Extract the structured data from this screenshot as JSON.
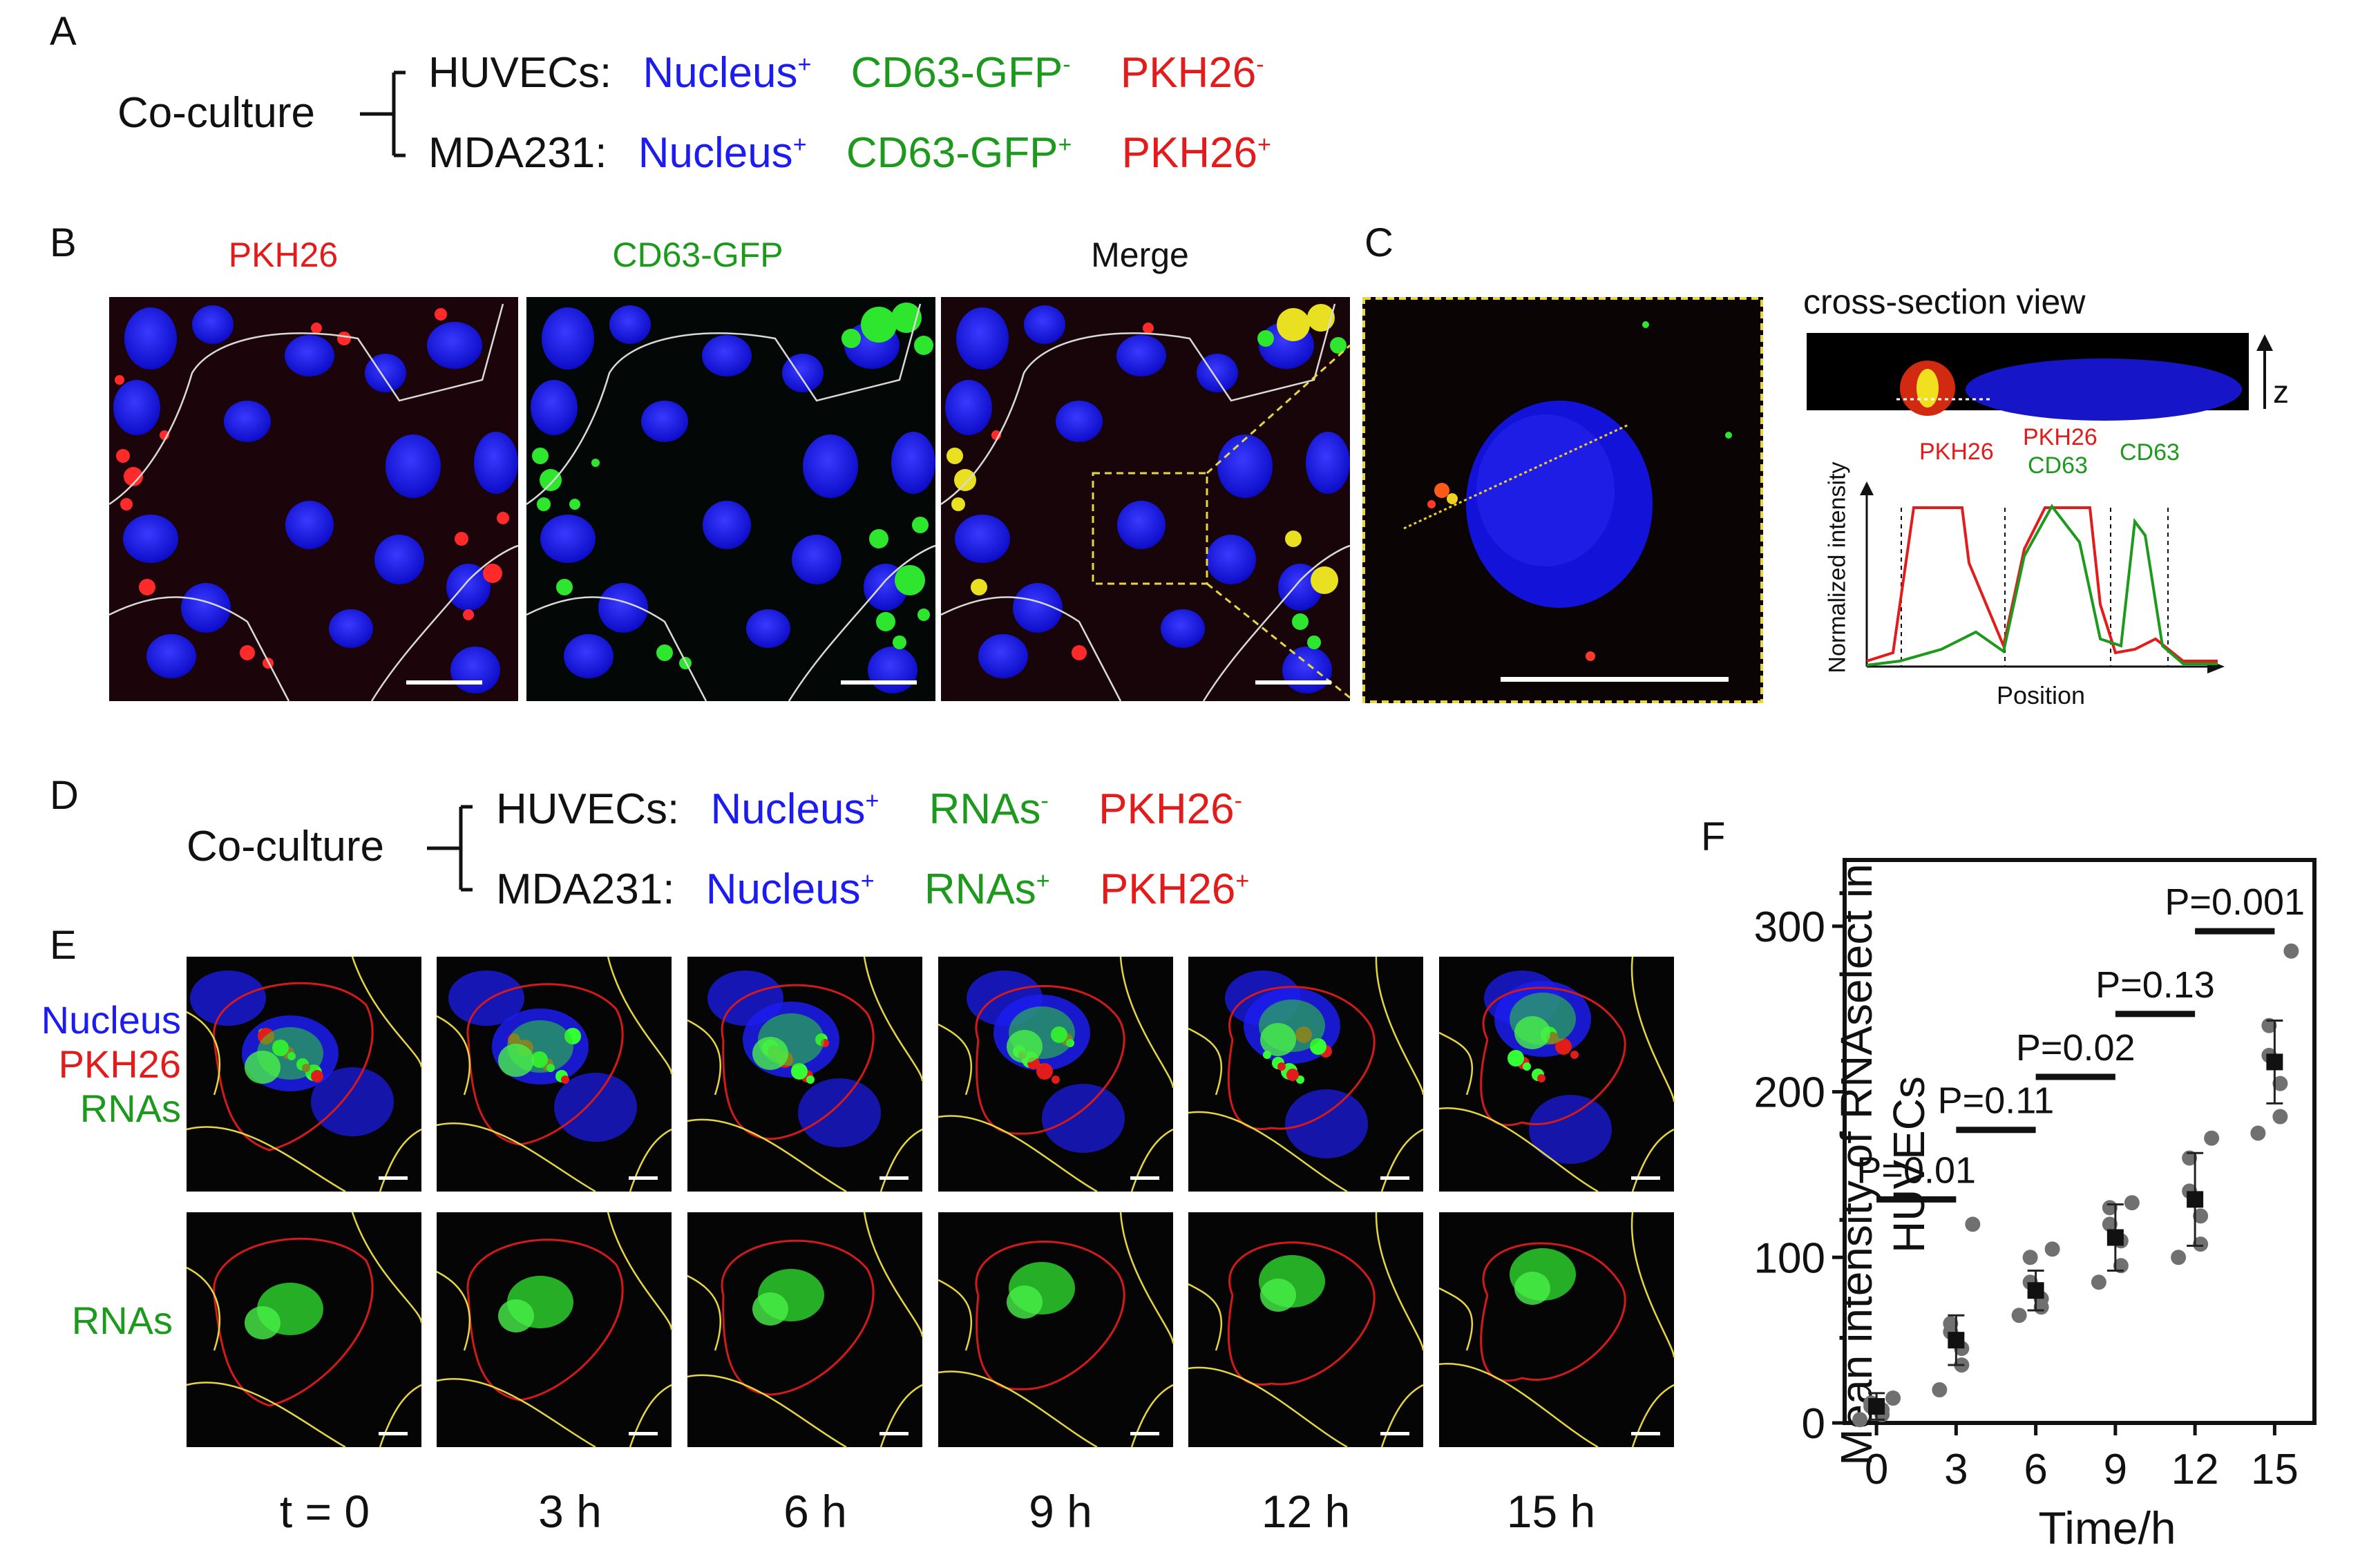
{
  "panelA": {
    "label": "A",
    "coculture": "Co-culture",
    "rows": [
      {
        "cell": "HUVECs:",
        "nucleus": "Nucleus",
        "nucleus_sign": "+",
        "marker": "CD63-GFP",
        "marker_sign": "-",
        "dye": "PKH26",
        "dye_sign": "-"
      },
      {
        "cell": "MDA231:",
        "nucleus": "Nucleus",
        "nucleus_sign": "+",
        "marker": "CD63-GFP",
        "marker_sign": "+",
        "dye": "PKH26",
        "dye_sign": "+"
      }
    ]
  },
  "panelB": {
    "label": "B",
    "channels": [
      "PKH26",
      "CD63-GFP",
      "Merge"
    ]
  },
  "panelC": {
    "label": "C",
    "cross_section_title": "cross-section view",
    "z_label": "z",
    "profile": {
      "ylabel": "Normalized intensity",
      "xlabel": "Position",
      "regions": [
        "PKH26",
        "PKH26",
        "CD63",
        "CD63"
      ]
    }
  },
  "panelD": {
    "label": "D",
    "coculture": "Co-culture",
    "rows": [
      {
        "cell": "HUVECs:",
        "nucleus": "Nucleus",
        "nucleus_sign": "+",
        "marker": "RNAs",
        "marker_sign": "-",
        "dye": "PKH26",
        "dye_sign": "-"
      },
      {
        "cell": "MDA231:",
        "nucleus": "Nucleus",
        "nucleus_sign": "+",
        "marker": "RNAs",
        "marker_sign": "+",
        "dye": "PKH26",
        "dye_sign": "+"
      }
    ]
  },
  "panelE": {
    "label": "E",
    "row1_labels": [
      "Nucleus",
      "PKH26",
      "RNAs"
    ],
    "row2_label": "RNAs",
    "timepoints": [
      "t = 0",
      "3 h",
      "6 h",
      "9 h",
      "12 h",
      "15 h"
    ]
  },
  "panelF": {
    "label": "F"
  },
  "colors": {
    "nucleus": "#1c1cf0",
    "gfp": "#1d9a1d",
    "pkh": "#e21b1b",
    "outline": "#e6d640",
    "outline_red": "#d21a1a"
  },
  "chart_data": {
    "type": "scatter",
    "xlabel": "Time/h",
    "ylabel": "Mean intensity of RNAselect in HUVECs",
    "x_ticks": [
      "0",
      "3",
      "6",
      "9",
      "12",
      "15"
    ],
    "y_ticks": [
      "0",
      "100",
      "200",
      "300"
    ],
    "ylim": [
      0,
      340
    ],
    "xlim": [
      -1.2,
      16.5
    ],
    "series": [
      {
        "x": 0,
        "mean": 10,
        "sd": 8,
        "points": [
          2,
          5,
          8,
          10,
          12,
          15
        ]
      },
      {
        "x": 3,
        "mean": 50,
        "sd": 15,
        "points": [
          20,
          35,
          45,
          55,
          60,
          120
        ]
      },
      {
        "x": 6,
        "mean": 80,
        "sd": 12,
        "points": [
          65,
          70,
          75,
          85,
          100,
          105
        ]
      },
      {
        "x": 9,
        "mean": 112,
        "sd": 20,
        "points": [
          85,
          95,
          110,
          120,
          130,
          133
        ]
      },
      {
        "x": 12,
        "mean": 135,
        "sd": 28,
        "points": [
          100,
          108,
          125,
          140,
          160,
          172
        ]
      },
      {
        "x": 15,
        "mean": 218,
        "sd": 25,
        "points": [
          175,
          185,
          205,
          222,
          240,
          285
        ]
      }
    ],
    "comparisons": [
      {
        "x1": 0,
        "x2": 3,
        "y": 135,
        "label": "P=0.01"
      },
      {
        "x1": 3,
        "x2": 6,
        "y": 177,
        "label": "P=0.11"
      },
      {
        "x1": 6,
        "x2": 9,
        "y": 209,
        "label": "P=0.02"
      },
      {
        "x1": 9,
        "x2": 12,
        "y": 247,
        "label": "P=0.13"
      },
      {
        "x1": 12,
        "x2": 15,
        "y": 297,
        "label": "P=0.001"
      }
    ]
  }
}
